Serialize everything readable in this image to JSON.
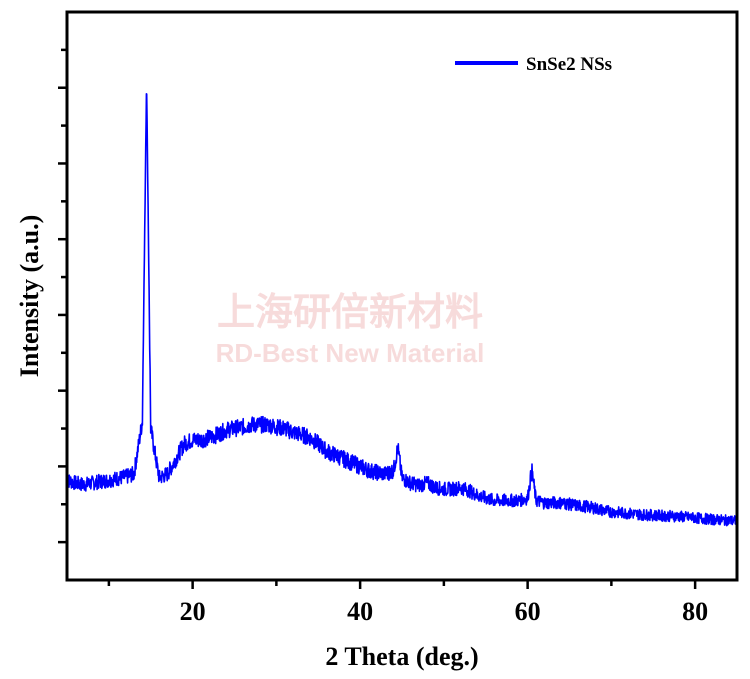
{
  "chart_data": {
    "type": "line",
    "title": "",
    "xlabel": "2 Theta (deg.)",
    "ylabel": "Intensity (a.u.)",
    "xlim": [
      5,
      85
    ],
    "ylim": [
      -0.5,
      7
    ],
    "x_ticks_major": [
      20,
      40,
      60,
      80
    ],
    "x_ticks_minor": [
      10,
      30,
      50,
      70
    ],
    "y_ticks_major": [
      0,
      1,
      2,
      3,
      4,
      5,
      6
    ],
    "y_tick_labels_shown": false,
    "grid": false,
    "legend_position": "top-right",
    "series": [
      {
        "name": "SnSe2 NSs",
        "color": "#0000ff",
        "x": [
          5,
          6,
          7,
          8,
          9,
          10,
          11,
          12,
          13,
          14,
          14.5,
          15,
          16,
          17,
          18,
          19,
          20,
          21,
          22,
          23,
          24,
          25,
          26,
          27,
          28,
          29,
          30,
          31,
          32,
          33,
          34,
          35,
          36,
          37,
          38,
          39,
          40,
          41,
          42,
          43,
          44,
          44.5,
          45,
          46,
          47,
          48,
          49,
          50,
          51,
          52,
          53,
          54,
          55,
          56,
          57,
          58,
          59,
          60,
          60.5,
          61,
          62,
          63,
          64,
          65,
          66,
          67,
          68,
          69,
          70,
          72,
          74,
          76,
          78,
          80,
          82,
          85
        ],
        "y": [
          0.82,
          0.78,
          0.76,
          0.78,
          0.8,
          0.82,
          0.84,
          0.86,
          0.9,
          1.6,
          6.1,
          1.5,
          0.85,
          0.9,
          1.1,
          1.3,
          1.35,
          1.35,
          1.38,
          1.42,
          1.48,
          1.5,
          1.52,
          1.55,
          1.55,
          1.55,
          1.52,
          1.5,
          1.45,
          1.42,
          1.38,
          1.3,
          1.2,
          1.15,
          1.1,
          1.05,
          1.0,
          0.95,
          0.92,
          0.9,
          0.95,
          1.25,
          0.85,
          0.78,
          0.75,
          0.78,
          0.72,
          0.7,
          0.7,
          0.72,
          0.68,
          0.62,
          0.58,
          0.55,
          0.55,
          0.55,
          0.55,
          0.58,
          0.95,
          0.55,
          0.52,
          0.52,
          0.52,
          0.5,
          0.48,
          0.47,
          0.45,
          0.42,
          0.4,
          0.38,
          0.36,
          0.35,
          0.34,
          0.32,
          0.3,
          0.28
        ]
      }
    ]
  },
  "watermark": {
    "line1": "上海研倍新材料",
    "line2": "RD-Best New Material"
  }
}
